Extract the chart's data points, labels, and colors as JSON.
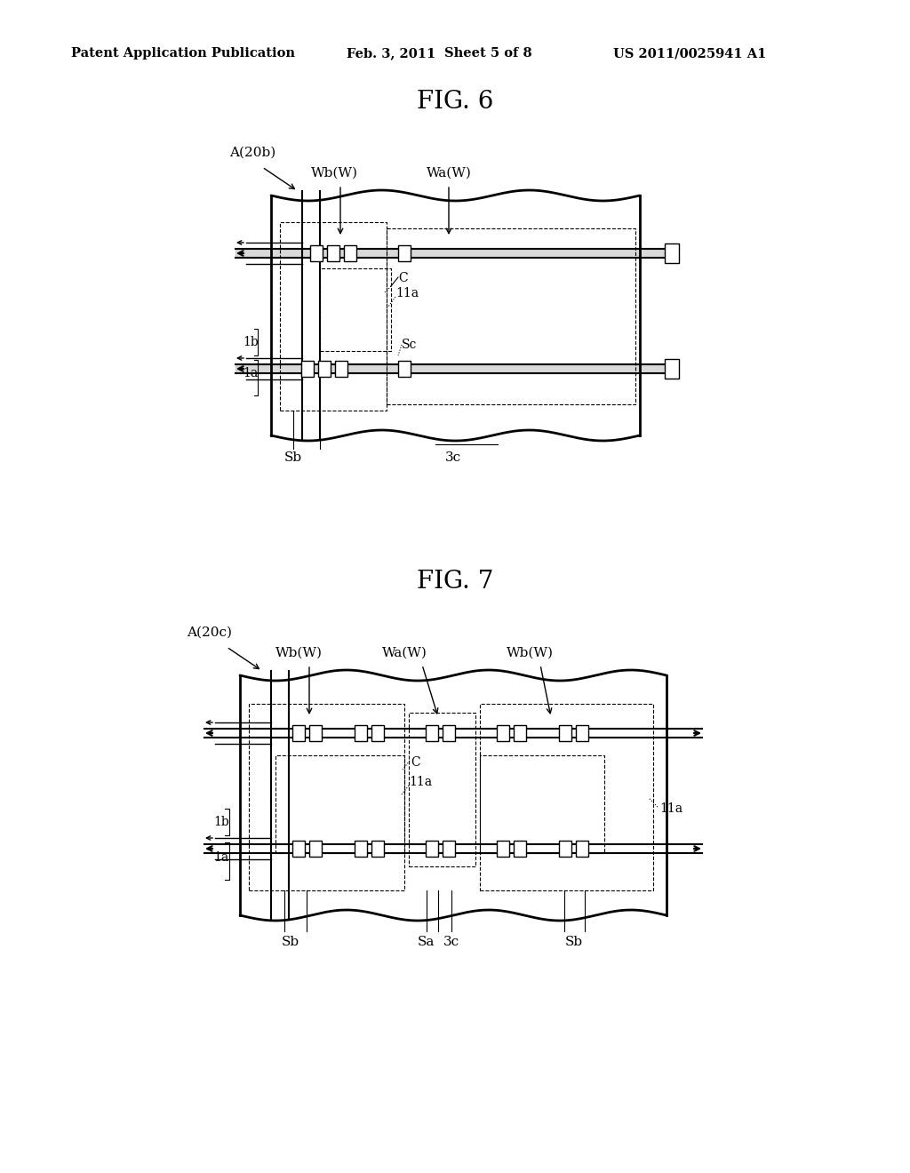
{
  "bg_color": "#ffffff",
  "header_text": "Patent Application Publication",
  "header_date": "Feb. 3, 2011",
  "header_sheet": "Sheet 5 of 8",
  "header_patent": "US 2011/0025941 A1",
  "fig6_title": "FIG. 6",
  "fig7_title": "FIG. 7"
}
